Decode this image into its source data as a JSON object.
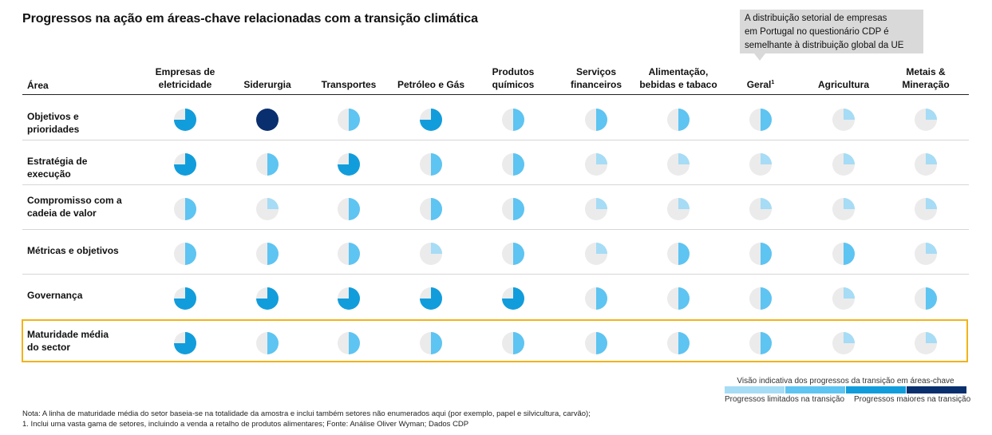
{
  "title": "Progressos na ação em áreas-chave relacionadas com a transição climática",
  "callout": {
    "line1": "A distribuição setorial de empresas",
    "line2": "em Portugal no questionário CDP é",
    "line3": "semelhante à distribuição global da UE"
  },
  "colors": {
    "empty": "#ebebeb",
    "level1": "#a6dcf5",
    "level2": "#5ec4f2",
    "level3": "#119ddc",
    "level4": "#0a2f6e",
    "highlight_border": "#f2b31a"
  },
  "chart_data": {
    "type": "table",
    "area_header": "Área",
    "columns": [
      {
        "line1": "Empresas de",
        "line2": "eletricidade"
      },
      {
        "line1": "",
        "line2": "Siderurgia"
      },
      {
        "line1": "",
        "line2": "Transportes"
      },
      {
        "line1": "",
        "line2": "Petróleo e Gás"
      },
      {
        "line1": "Produtos",
        "line2": "químicos"
      },
      {
        "line1": "Serviços",
        "line2": "financeiros"
      },
      {
        "line1": "Alimentação,",
        "line2": "bebidas e tabaco"
      },
      {
        "line1": "",
        "line2": "Geral",
        "sup": "1"
      },
      {
        "line1": "",
        "line2": "Agricultura"
      },
      {
        "line1": "Metais &",
        "line2": "Mineração"
      }
    ],
    "value_scale": "Harvey ball: 1 = quarter, 2 = half, 3 = three-quarters, 4 = full",
    "rows": [
      {
        "line1": "Objetivos e prioridades",
        "line2": "",
        "values": [
          3,
          4,
          2,
          3,
          2,
          2,
          2,
          2,
          1,
          1
        ]
      },
      {
        "line1": "Estratégia de execução",
        "line2": "",
        "values": [
          3,
          2,
          3,
          2,
          2,
          1,
          1,
          1,
          1,
          1
        ]
      },
      {
        "line1": "Compromisso com a",
        "line2": "cadeia de valor",
        "values": [
          2,
          1,
          2,
          2,
          2,
          1,
          1,
          1,
          1,
          1
        ]
      },
      {
        "line1": "Métricas e objetivos",
        "line2": "",
        "values": [
          2,
          2,
          2,
          1,
          2,
          1,
          2,
          2,
          2,
          1
        ]
      },
      {
        "line1": "Governança",
        "line2": "",
        "values": [
          3,
          3,
          3,
          3,
          3,
          2,
          2,
          2,
          1,
          2
        ]
      },
      {
        "line1": "Maturidade média",
        "line2": "do sector",
        "values": [
          3,
          2,
          2,
          2,
          2,
          2,
          2,
          2,
          1,
          1
        ],
        "highlighted": true
      }
    ]
  },
  "legend": {
    "title": "Visão indicativa dos progressos da transição em áreas-chave",
    "low_label": "Progressos limitados na transição",
    "high_label": "Progressos maiores na transição"
  },
  "notes": {
    "line1": "Nota: A linha de maturidade média do setor baseia-se na totalidade da amostra e inclui também setores não enumerados aqui (por exemplo, papel e silvicultura, carvão);",
    "line2": "1. Inclui uma vasta gama de setores, incluindo a venda a retalho de produtos alimentares; Fonte: Análise Oliver Wyman; Dados CDP"
  }
}
